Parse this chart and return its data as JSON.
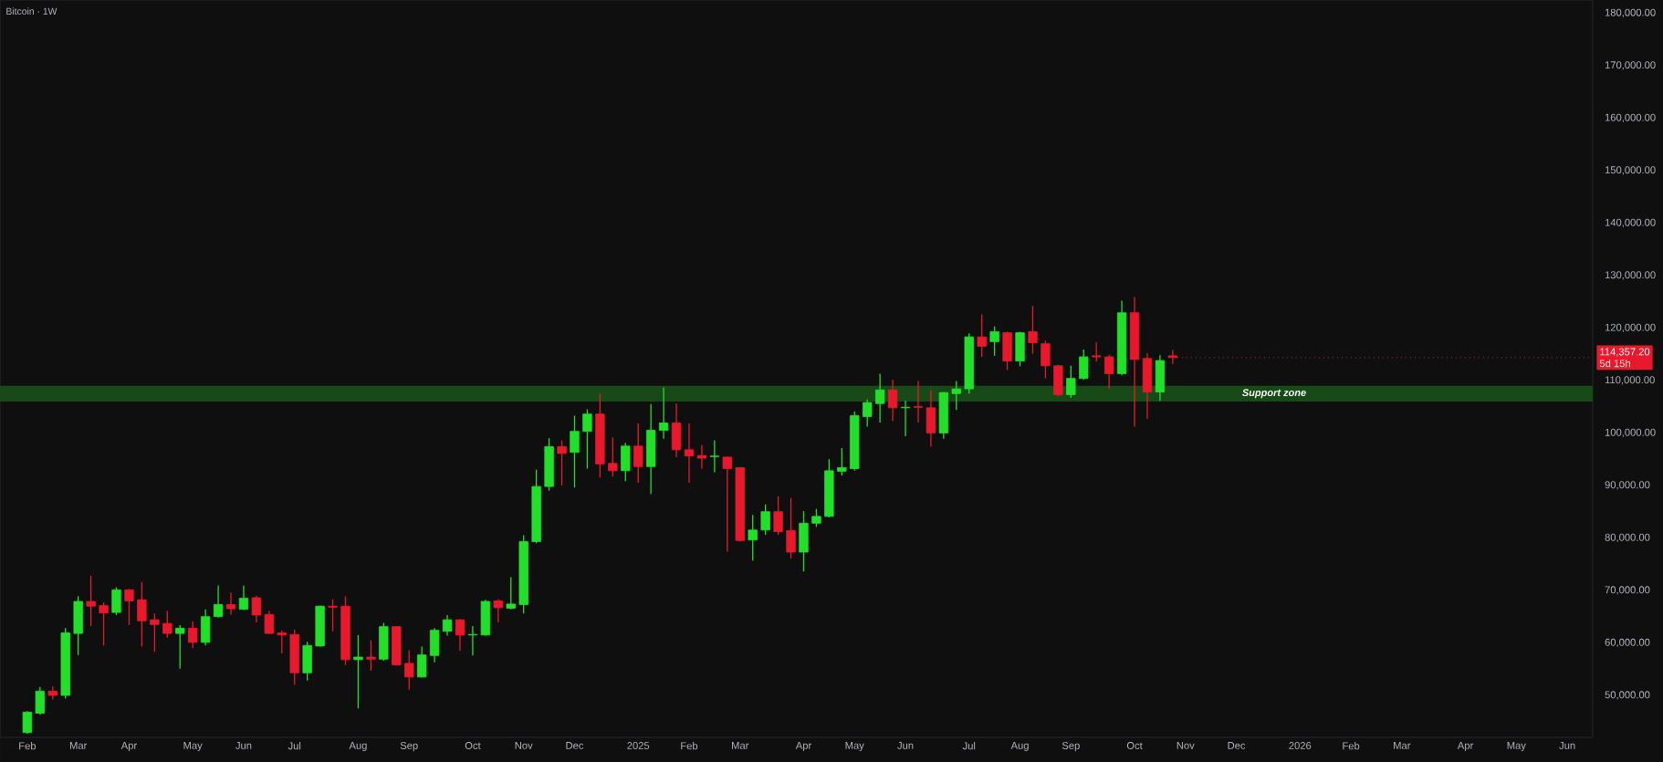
{
  "chart_data": {
    "type": "candlestick",
    "title": "Bitcoin · 1W",
    "x": [
      "2024-02-05",
      "2024-02-12",
      "2024-02-19",
      "2024-02-26",
      "2024-03-04",
      "2024-03-11",
      "2024-03-18",
      "2024-03-25",
      "2024-04-01",
      "2024-04-08",
      "2024-04-15",
      "2024-04-22",
      "2024-04-29",
      "2024-05-06",
      "2024-05-13",
      "2024-05-20",
      "2024-05-27",
      "2024-06-03",
      "2024-06-10",
      "2024-06-17",
      "2024-06-24",
      "2024-07-01",
      "2024-07-08",
      "2024-07-15",
      "2024-07-22",
      "2024-07-29",
      "2024-08-05",
      "2024-08-12",
      "2024-08-19",
      "2024-08-26",
      "2024-09-02",
      "2024-09-09",
      "2024-09-16",
      "2024-09-23",
      "2024-09-30",
      "2024-10-07",
      "2024-10-14",
      "2024-10-21",
      "2024-10-28",
      "2024-11-04",
      "2024-11-11",
      "2024-11-18",
      "2024-11-25",
      "2024-12-02",
      "2024-12-09",
      "2024-12-16",
      "2024-12-23",
      "2024-12-30",
      "2025-01-06",
      "2025-01-13",
      "2025-01-20",
      "2025-01-27",
      "2025-02-03",
      "2025-02-10",
      "2025-02-17",
      "2025-02-24",
      "2025-03-03",
      "2025-03-10",
      "2025-03-17",
      "2025-03-24",
      "2025-03-31",
      "2025-04-07",
      "2025-04-14",
      "2025-04-21",
      "2025-04-28",
      "2025-05-05",
      "2025-05-12",
      "2025-05-19",
      "2025-05-26",
      "2025-06-02",
      "2025-06-09",
      "2025-06-16",
      "2025-06-23",
      "2025-06-30",
      "2025-07-07",
      "2025-07-14",
      "2025-07-21",
      "2025-07-28",
      "2025-08-04",
      "2025-08-11",
      "2025-08-18",
      "2025-08-25",
      "2025-09-01",
      "2025-09-08",
      "2025-09-15",
      "2025-09-22",
      "2025-09-29",
      "2025-10-06",
      "2025-10-13",
      "2025-10-20",
      "2025-10-27"
    ],
    "ohlc": [
      [
        42900,
        47000,
        42700,
        46800
      ],
      [
        46600,
        51600,
        46300,
        50800
      ],
      [
        50800,
        51700,
        49200,
        50000
      ],
      [
        50000,
        62800,
        49400,
        61900
      ],
      [
        61800,
        68900,
        57700,
        67900
      ],
      [
        67900,
        72800,
        63200,
        67000
      ],
      [
        67100,
        67700,
        59500,
        65700
      ],
      [
        65800,
        70600,
        65300,
        70100
      ],
      [
        70100,
        70300,
        63400,
        68000
      ],
      [
        68200,
        71600,
        59300,
        64200
      ],
      [
        64400,
        65600,
        58300,
        63500
      ],
      [
        63700,
        66100,
        61000,
        61800
      ],
      [
        61800,
        63400,
        55100,
        62800
      ],
      [
        62800,
        64100,
        59000,
        60100
      ],
      [
        60100,
        66400,
        59500,
        65000
      ],
      [
        65000,
        70900,
        64800,
        67300
      ],
      [
        67300,
        69600,
        65400,
        66500
      ],
      [
        66400,
        70900,
        66300,
        68500
      ],
      [
        68600,
        69000,
        63900,
        65300
      ],
      [
        65400,
        66100,
        61700,
        61800
      ],
      [
        61900,
        62400,
        58000,
        61500
      ],
      [
        61600,
        62500,
        52000,
        54300
      ],
      [
        54300,
        60200,
        52800,
        59500
      ],
      [
        59400,
        67100,
        59300,
        67000
      ],
      [
        67000,
        68300,
        62200,
        66800
      ],
      [
        67000,
        68900,
        55800,
        56800
      ],
      [
        56800,
        61500,
        47500,
        57300
      ],
      [
        57300,
        60500,
        54700,
        56900
      ],
      [
        56900,
        63800,
        56600,
        63100
      ],
      [
        63100,
        63200,
        55700,
        55800
      ],
      [
        56100,
        58600,
        51100,
        53500
      ],
      [
        53500,
        59300,
        53400,
        57700
      ],
      [
        57600,
        62800,
        56300,
        62400
      ],
      [
        62200,
        65300,
        61400,
        64400
      ],
      [
        64400,
        64500,
        58500,
        61500
      ],
      [
        61500,
        63200,
        57600,
        61600
      ],
      [
        61500,
        68200,
        61400,
        67900
      ],
      [
        68000,
        68300,
        63900,
        66700
      ],
      [
        66600,
        72500,
        66400,
        67400
      ],
      [
        67300,
        80500,
        65600,
        79300
      ],
      [
        79300,
        93000,
        79000,
        89800
      ],
      [
        89800,
        99000,
        89000,
        97400
      ],
      [
        97400,
        98600,
        90000,
        96100
      ],
      [
        96300,
        103300,
        89600,
        100300
      ],
      [
        100300,
        104500,
        93200,
        103600
      ],
      [
        103600,
        107500,
        91500,
        94100
      ],
      [
        94200,
        99100,
        91700,
        92800
      ],
      [
        92800,
        98100,
        90800,
        97500
      ],
      [
        97500,
        101800,
        90500,
        93600
      ],
      [
        93600,
        105500,
        88400,
        100500
      ],
      [
        100500,
        108700,
        98900,
        101900
      ],
      [
        101900,
        105600,
        95400,
        96800
      ],
      [
        96800,
        101800,
        90500,
        95600
      ],
      [
        95700,
        97700,
        93200,
        95200
      ],
      [
        95500,
        98600,
        92500,
        95600
      ],
      [
        95400,
        95500,
        77400,
        93200
      ],
      [
        93400,
        93500,
        79300,
        79500
      ],
      [
        79600,
        84400,
        75700,
        81500
      ],
      [
        81500,
        86400,
        80600,
        85000
      ],
      [
        85000,
        87900,
        80600,
        81200
      ],
      [
        81400,
        87600,
        76100,
        77300
      ],
      [
        77300,
        85100,
        73600,
        82800
      ],
      [
        82800,
        85500,
        82100,
        84100
      ],
      [
        84100,
        95000,
        83900,
        92800
      ],
      [
        92700,
        97100,
        91900,
        93400
      ],
      [
        93200,
        104100,
        92800,
        103300
      ],
      [
        103100,
        106400,
        101200,
        105800
      ],
      [
        105600,
        111300,
        102000,
        108200
      ],
      [
        108200,
        110100,
        102300,
        104800
      ],
      [
        104800,
        106100,
        99400,
        104900
      ],
      [
        105000,
        109900,
        102000,
        104900
      ],
      [
        104800,
        108100,
        97400,
        100000
      ],
      [
        100000,
        107800,
        98900,
        107700
      ],
      [
        107500,
        109900,
        104400,
        108400
      ],
      [
        108400,
        119000,
        107500,
        118300
      ],
      [
        118300,
        122600,
        114500,
        116500
      ],
      [
        117400,
        120300,
        114700,
        119300
      ],
      [
        119100,
        119300,
        112000,
        113700
      ],
      [
        113700,
        119300,
        112700,
        119100
      ],
      [
        119300,
        124200,
        115100,
        117200
      ],
      [
        117000,
        117600,
        110400,
        112800
      ],
      [
        112800,
        113000,
        107000,
        107300
      ],
      [
        107300,
        112800,
        106700,
        110400
      ],
      [
        110400,
        115900,
        110100,
        114500
      ],
      [
        114700,
        117300,
        113600,
        114500
      ],
      [
        114500,
        114900,
        108400,
        111300
      ],
      [
        111300,
        125200,
        111000,
        122900
      ],
      [
        122900,
        125900,
        101200,
        114000
      ],
      [
        114200,
        115200,
        102700,
        107800
      ],
      [
        107800,
        114800,
        106100,
        113800
      ],
      [
        114700,
        115800,
        113100,
        114357.2
      ]
    ],
    "colors": [
      "#22e02a",
      "#22e02a",
      "#e8192c",
      "#22e02a",
      "#22e02a",
      "#e8192c",
      "#e8192c",
      "#22e02a",
      "#e8192c",
      "#e8192c",
      "#e8192c",
      "#e8192c",
      "#22e02a",
      "#e8192c",
      "#22e02a",
      "#22e02a",
      "#e8192c",
      "#22e02a",
      "#e8192c",
      "#e8192c",
      "#e8192c",
      "#e8192c",
      "#22e02a",
      "#22e02a",
      "#e8192c",
      "#e8192c",
      "#22e02a",
      "#e8192c",
      "#22e02a",
      "#e8192c",
      "#e8192c",
      "#22e02a",
      "#22e02a",
      "#22e02a",
      "#e8192c",
      "#22e02a",
      "#22e02a",
      "#e8192c",
      "#22e02a",
      "#22e02a",
      "#22e02a",
      "#22e02a",
      "#e8192c",
      "#22e02a",
      "#22e02a",
      "#e8192c",
      "#e8192c",
      "#22e02a",
      "#e8192c",
      "#22e02a",
      "#22e02a",
      "#e8192c",
      "#e8192c",
      "#e8192c",
      "#22e02a",
      "#e8192c",
      "#e8192c",
      "#22e02a",
      "#22e02a",
      "#e8192c",
      "#e8192c",
      "#22e02a",
      "#22e02a",
      "#22e02a",
      "#22e02a",
      "#22e02a",
      "#22e02a",
      "#22e02a",
      "#e8192c",
      "#22e02a",
      "#e8192c",
      "#e8192c",
      "#22e02a",
      "#22e02a",
      "#22e02a",
      "#e8192c",
      "#22e02a",
      "#e8192c",
      "#22e02a",
      "#e8192c",
      "#e8192c",
      "#e8192c",
      "#22e02a",
      "#22e02a",
      "#e8192c",
      "#e8192c",
      "#22e02a",
      "#e8192c",
      "#e8192c",
      "#22e02a",
      "#e8192c"
    ],
    "xlim": [
      "2024-01-21",
      "2026-06-15"
    ],
    "xticks": [
      {
        "value": "2024-02-05",
        "label": "Feb"
      },
      {
        "value": "2024-03-04",
        "label": "Mar"
      },
      {
        "value": "2024-04-01",
        "label": "Apr"
      },
      {
        "value": "2024-05-06",
        "label": "May"
      },
      {
        "value": "2024-06-03",
        "label": "Jun"
      },
      {
        "value": "2024-07-01",
        "label": "Jul"
      },
      {
        "value": "2024-08-05",
        "label": "Aug"
      },
      {
        "value": "2024-09-02",
        "label": "Sep"
      },
      {
        "value": "2024-10-07",
        "label": "Oct"
      },
      {
        "value": "2024-11-04",
        "label": "Nov"
      },
      {
        "value": "2024-12-02",
        "label": "Dec"
      },
      {
        "value": "2025-01-06",
        "label": "2025"
      },
      {
        "value": "2025-02-03",
        "label": "Feb"
      },
      {
        "value": "2025-03-03",
        "label": "Mar"
      },
      {
        "value": "2025-04-07",
        "label": "Apr"
      },
      {
        "value": "2025-05-05",
        "label": "May"
      },
      {
        "value": "2025-06-02",
        "label": "Jun"
      },
      {
        "value": "2025-07-07",
        "label": "Jul"
      },
      {
        "value": "2025-08-04",
        "label": "Aug"
      },
      {
        "value": "2025-09-01",
        "label": "Sep"
      },
      {
        "value": "2025-10-06",
        "label": "Oct"
      },
      {
        "value": "2025-11-03",
        "label": "Nov"
      },
      {
        "value": "2025-12-01",
        "label": "Dec"
      },
      {
        "value": "2026-01-05",
        "label": "2026"
      },
      {
        "value": "2026-02-02",
        "label": "Feb"
      },
      {
        "value": "2026-03-02",
        "label": "Mar"
      },
      {
        "value": "2026-04-06",
        "label": "Apr"
      },
      {
        "value": "2026-05-04",
        "label": "May"
      },
      {
        "value": "2026-06-01",
        "label": "Jun"
      }
    ],
    "ylim": [
      42000,
      182500
    ],
    "yticks": [
      {
        "value": 50000,
        "label": "50,000.00"
      },
      {
        "value": 60000,
        "label": "60,000.00"
      },
      {
        "value": 70000,
        "label": "70,000.00"
      },
      {
        "value": 80000,
        "label": "80,000.00"
      },
      {
        "value": 90000,
        "label": "90,000.00"
      },
      {
        "value": 100000,
        "label": "100,000.00"
      },
      {
        "value": 110000,
        "label": "110,000.00"
      },
      {
        "value": 120000,
        "label": "120,000.00"
      },
      {
        "value": 130000,
        "label": "130,000.00"
      },
      {
        "value": 140000,
        "label": "140,000.00"
      },
      {
        "value": 150000,
        "label": "150,000.00"
      },
      {
        "value": 160000,
        "label": "160,000.00"
      },
      {
        "value": 170000,
        "label": "170,000.00"
      },
      {
        "value": 180000,
        "label": "180,000.00"
      }
    ],
    "bands": [
      {
        "axis": "y",
        "from": 106000,
        "to": 109000,
        "label": "Support zone",
        "color": "#174a17"
      }
    ],
    "annotations": [
      {
        "text": "114,357.20",
        "x": "2025-10-27",
        "y": 114357.2
      },
      "5d 15h"
    ]
  }
}
